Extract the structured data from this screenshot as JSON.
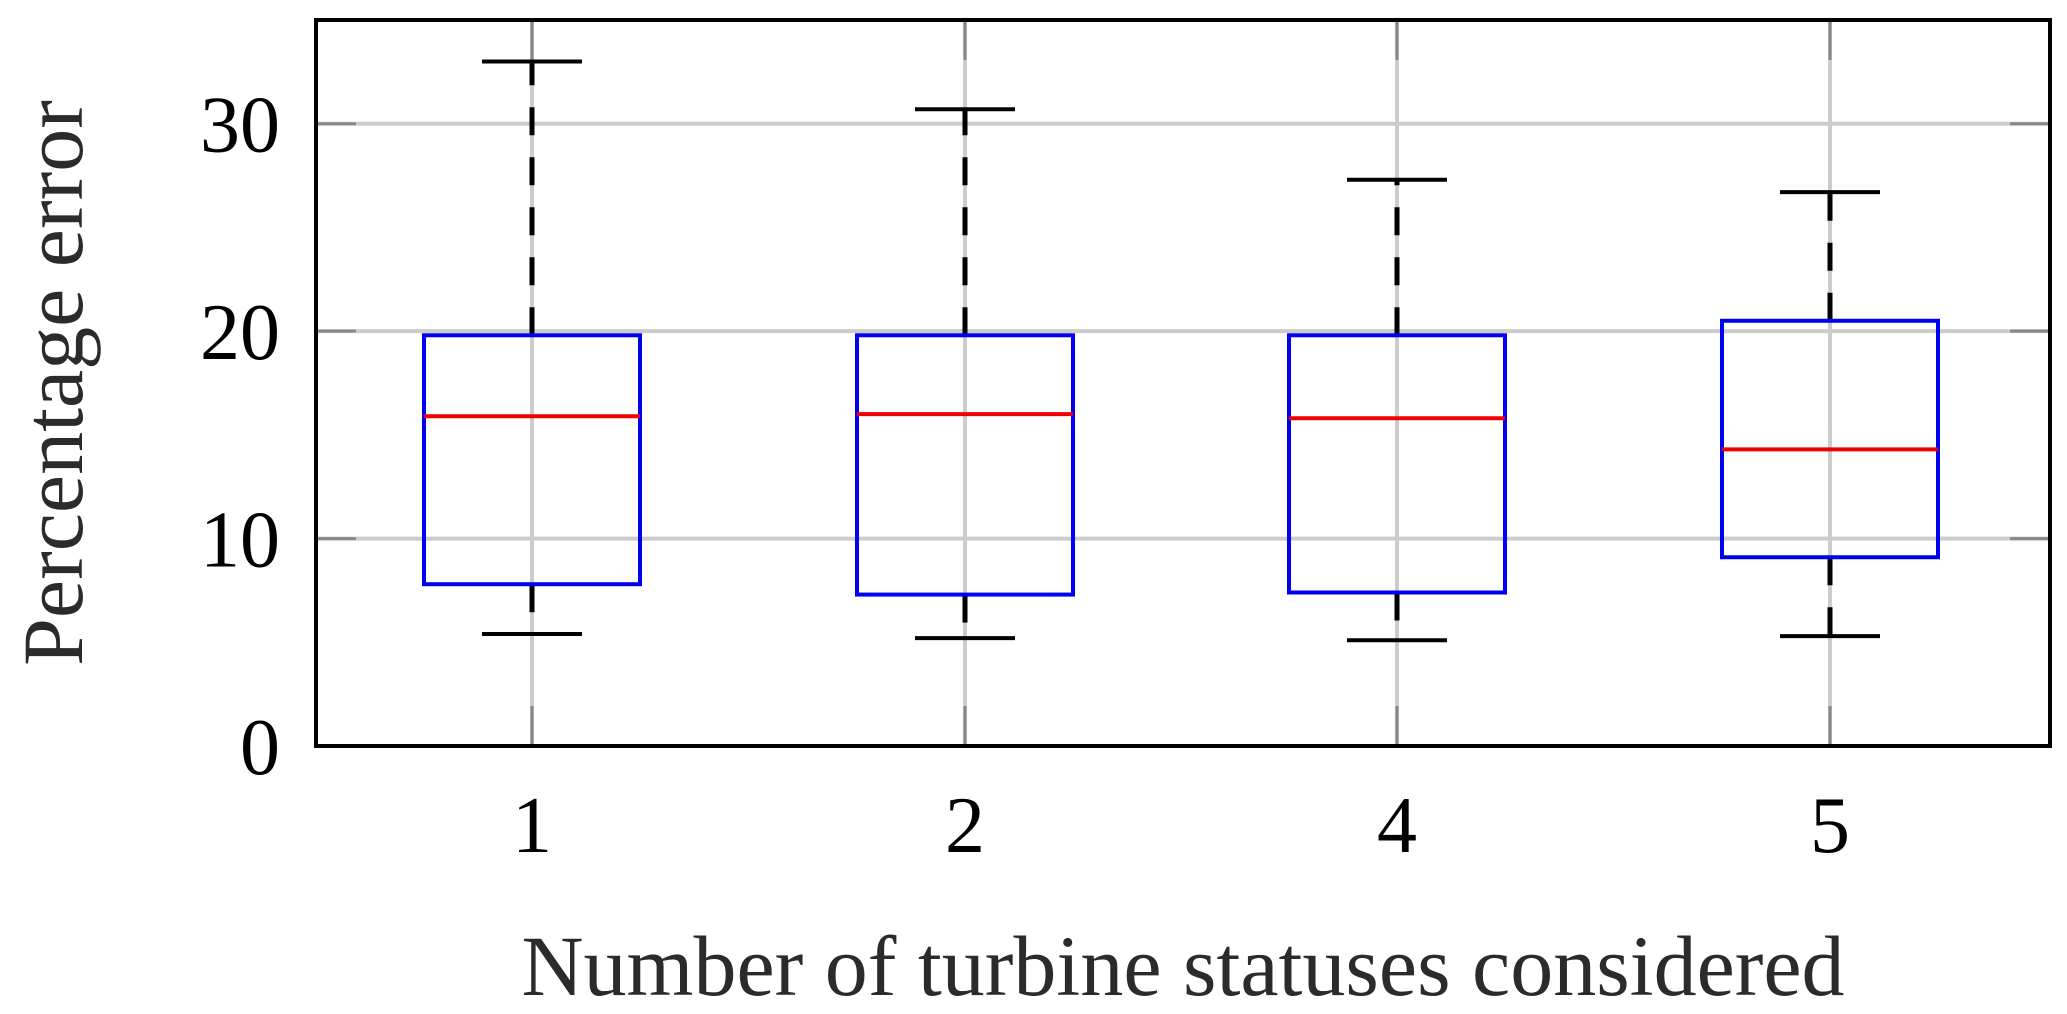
{
  "chart_data": {
    "type": "box",
    "title": "",
    "xlabel": "Number of turbine statuses considered",
    "ylabel": "Percentage error",
    "categories": [
      "1",
      "2",
      "4",
      "5"
    ],
    "ylim": [
      0,
      35
    ],
    "yticks": [
      0,
      10,
      20,
      30
    ],
    "grid": true,
    "boxes": [
      {
        "category": "1",
        "whisker_low": 5.4,
        "q1": 7.8,
        "median": 15.9,
        "q3": 19.8,
        "whisker_high": 33.0
      },
      {
        "category": "2",
        "whisker_low": 5.2,
        "q1": 7.3,
        "median": 16.0,
        "q3": 19.8,
        "whisker_high": 30.7
      },
      {
        "category": "4",
        "whisker_low": 5.1,
        "q1": 7.4,
        "median": 15.8,
        "q3": 19.8,
        "whisker_high": 27.3
      },
      {
        "category": "5",
        "whisker_low": 5.3,
        "q1": 9.1,
        "median": 14.3,
        "q3": 20.5,
        "whisker_high": 26.7
      }
    ],
    "colors": {
      "box": "#0000ee",
      "median": "#ee0000",
      "whisker": "#000000",
      "grid": "#cccccc",
      "tick": "#888888"
    }
  }
}
